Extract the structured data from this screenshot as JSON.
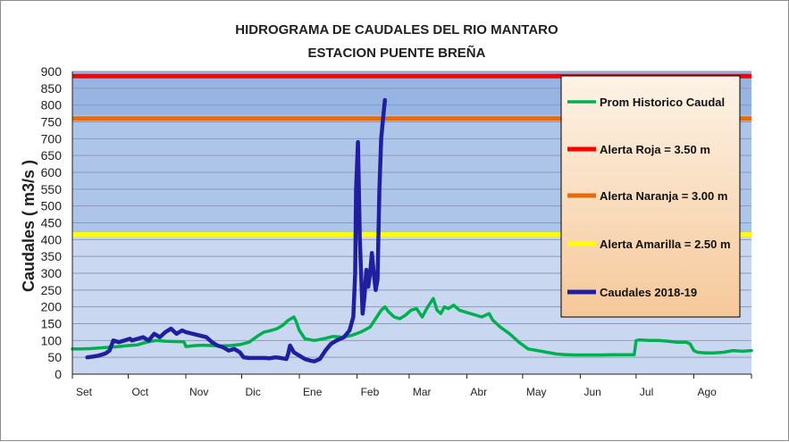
{
  "chart_data": {
    "type": "line",
    "title_lines": [
      "HIDROGRAMA DE CAUDALES DEL RIO MANTARO",
      "ESTACION PUENTE BREÑA"
    ],
    "ylabel": "Caudales ( m3/s )",
    "xlabel": "",
    "ylim": [
      0,
      900
    ],
    "yticks": [
      0,
      50,
      100,
      150,
      200,
      250,
      300,
      350,
      400,
      450,
      500,
      550,
      600,
      650,
      700,
      750,
      800,
      850,
      900
    ],
    "xlim": [
      0,
      365
    ],
    "month_labels": [
      {
        "label": "Set",
        "day": 0
      },
      {
        "label": "Oct",
        "day": 30
      },
      {
        "label": "Nov",
        "day": 61
      },
      {
        "label": "Dic",
        "day": 91
      },
      {
        "label": "Ene",
        "day": 122
      },
      {
        "label": "Feb",
        "day": 153
      },
      {
        "label": "Mar",
        "day": 181
      },
      {
        "label": "Abr",
        "day": 212
      },
      {
        "label": "May",
        "day": 242
      },
      {
        "label": "Jun",
        "day": 273
      },
      {
        "label": "Jul",
        "day": 303
      },
      {
        "label": "Ago",
        "day": 334
      }
    ],
    "background_bands": [
      {
        "from": 0,
        "to": 420,
        "color": "#c9d8f0"
      },
      {
        "from": 420,
        "to": 770,
        "color": "#aec5ea"
      },
      {
        "from": 770,
        "to": 900,
        "color": "#97b4e3"
      }
    ],
    "grid": true,
    "legend_position": "right",
    "thresholds": [
      {
        "name": "Alerta Roja =  3.50 m",
        "value": 886,
        "color": "#ff0000"
      },
      {
        "name": "Alerta Naranja = 3.00 m",
        "value": 760,
        "color": "#e46c0a"
      },
      {
        "name": "Alerta Amarilla = 2.50 m",
        "value": 415,
        "color": "#ffff00"
      }
    ],
    "series": [
      {
        "name": "Prom Historico Caudal",
        "color": "#00b050",
        "x": [
          0,
          5,
          10,
          15,
          20,
          25,
          30,
          35,
          40,
          45,
          50,
          55,
          60,
          61,
          66,
          70,
          75,
          80,
          85,
          90,
          95,
          100,
          103,
          107,
          110,
          113,
          116,
          119,
          120,
          122,
          125,
          130,
          135,
          140,
          145,
          150,
          155,
          160,
          163,
          166,
          168,
          170,
          173,
          176,
          179,
          182,
          185,
          188,
          191,
          194,
          196,
          198,
          200,
          202,
          205,
          208,
          211,
          214,
          217,
          220,
          222,
          224,
          226,
          230,
          235,
          240,
          245,
          250,
          255,
          260,
          265,
          270,
          275,
          280,
          285,
          290,
          295,
          300,
          302,
          303,
          305,
          310,
          315,
          320,
          325,
          330,
          332,
          334,
          336,
          340,
          345,
          350,
          355,
          360,
          365
        ],
        "values": [
          75,
          75,
          76,
          78,
          80,
          82,
          85,
          87,
          95,
          100,
          98,
          97,
          96,
          82,
          85,
          86,
          85,
          84,
          85,
          88,
          95,
          115,
          125,
          130,
          135,
          145,
          160,
          170,
          160,
          130,
          105,
          100,
          105,
          112,
          110,
          115,
          125,
          140,
          165,
          190,
          200,
          185,
          170,
          165,
          175,
          190,
          195,
          170,
          200,
          225,
          190,
          180,
          200,
          195,
          205,
          190,
          185,
          180,
          175,
          170,
          175,
          180,
          160,
          140,
          120,
          95,
          75,
          70,
          65,
          60,
          58,
          57,
          57,
          57,
          57,
          58,
          58,
          58,
          58,
          100,
          102,
          100,
          100,
          98,
          95,
          95,
          90,
          70,
          65,
          63,
          63,
          65,
          70,
          68,
          70
        ]
      },
      {
        "name": "Caudales 2018-19",
        "color": "#1f1fa0",
        "x": [
          8,
          11,
          14,
          17,
          18,
          20,
          22,
          25,
          28,
          31,
          32,
          38,
          41,
          44,
          47,
          50,
          53,
          56,
          59,
          61,
          72,
          75,
          78,
          81,
          84,
          87,
          90,
          92,
          95,
          100,
          103,
          106,
          109,
          112,
          115,
          116,
          117,
          119,
          122,
          125,
          128,
          130,
          133,
          136,
          139,
          142,
          146,
          149,
          151,
          152,
          152.5,
          153.5,
          154.5,
          156,
          157,
          158,
          159,
          160,
          161,
          162,
          163,
          164,
          165,
          166,
          167,
          168
        ],
        "values": [
          50,
          52,
          55,
          60,
          62,
          70,
          100,
          95,
          100,
          105,
          100,
          110,
          100,
          120,
          110,
          125,
          135,
          120,
          130,
          125,
          110,
          95,
          85,
          80,
          70,
          75,
          65,
          50,
          48,
          48,
          48,
          47,
          50,
          48,
          45,
          60,
          85,
          65,
          55,
          45,
          40,
          38,
          45,
          70,
          90,
          100,
          110,
          130,
          170,
          300,
          550,
          690,
          400,
          180,
          230,
          310,
          260,
          300,
          360,
          300,
          250,
          280,
          550,
          700,
          760,
          815
        ]
      }
    ]
  }
}
